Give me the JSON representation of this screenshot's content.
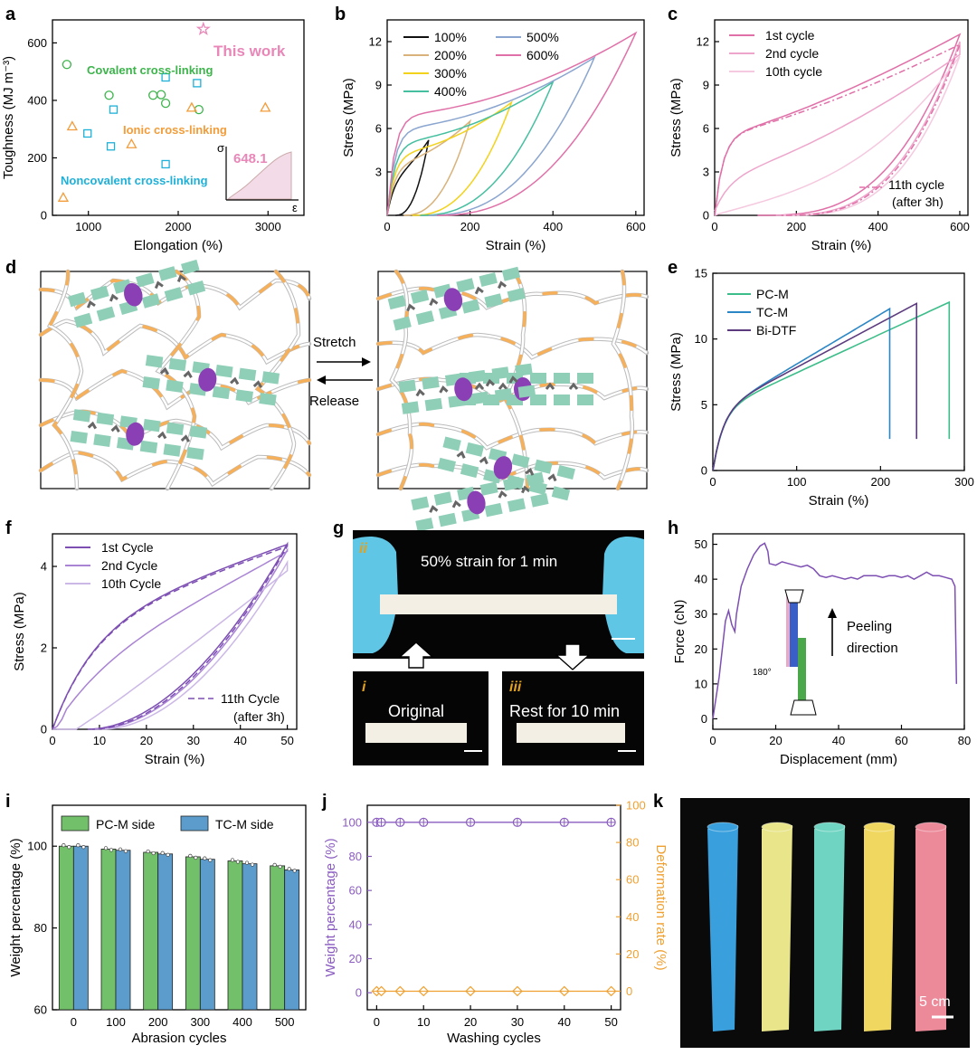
{
  "panels": {
    "a": "a",
    "b": "b",
    "c": "c",
    "d": "d",
    "e": "e",
    "f": "f",
    "g": "g",
    "h": "h",
    "i": "i",
    "j": "j",
    "k": "k"
  },
  "colors": {
    "covalent": "#3cb44b",
    "ionic": "#f39c3a",
    "noncovalent": "#1fb0d8",
    "this_work": "#e887b8",
    "s100": "#111111",
    "s200": "#d8b27a",
    "s300": "#f2d21a",
    "s400": "#45bfa0",
    "s500": "#8aa5cf",
    "s600": "#e070a8",
    "pink1": "#e070a8",
    "pink2": "#eea5cb",
    "pink3": "#f5c9df",
    "pcm": "#3dbd8a",
    "tcm": "#2a86c4",
    "bidtf": "#5b3b7e",
    "purple1": "#7d4fb3",
    "purple2": "#a983d4",
    "purple3": "#cbb8e6",
    "bar_green": "#72c06a",
    "bar_blue": "#5b9ccd",
    "j_purple": "#8a5cc0",
    "j_orange": "#f0a030",
    "block": "#8fcfb8",
    "oval": "#8b3fb5",
    "chain_orange": "#f7b05a"
  },
  "chart_data": [
    {
      "id": "a",
      "type": "scatter",
      "xlabel": "Elongation (%)",
      "ylabel": "Toughness (MJ m⁻³)",
      "xlim": [
        600,
        3400
      ],
      "ylim": [
        0,
        680
      ],
      "xticks": [
        1000,
        2000,
        3000
      ],
      "yticks": [
        0,
        200,
        400,
        600
      ],
      "series": [
        {
          "name": "Covalent cross-linking",
          "marker": "circle",
          "points": [
            [
              760,
              525
            ],
            [
              1230,
              418
            ],
            [
              1720,
              418
            ],
            [
              1810,
              420
            ],
            [
              1860,
              390
            ],
            [
              2230,
              368
            ]
          ]
        },
        {
          "name": "Ionic cross-linking",
          "marker": "triangle",
          "points": [
            [
              720,
              62
            ],
            [
              820,
              310
            ],
            [
              1480,
              248
            ],
            [
              2150,
              375
            ],
            [
              2970,
              375
            ]
          ]
        },
        {
          "name": "Noncovalent cross-linking",
          "marker": "square",
          "points": [
            [
              990,
              285
            ],
            [
              1280,
              368
            ],
            [
              1250,
              240
            ],
            [
              1860,
              480
            ],
            [
              2210,
              460
            ],
            [
              1860,
              178
            ]
          ]
        },
        {
          "name": "This work",
          "marker": "star",
          "points": [
            [
              2280,
              648
            ]
          ]
        }
      ],
      "inset": {
        "value": "648.1",
        "xlabel": "ε",
        "ylabel": "σ"
      }
    },
    {
      "id": "b",
      "type": "line",
      "xlabel": "Strain (%)",
      "ylabel": "Stress (MPa)",
      "xlim": [
        0,
        620
      ],
      "ylim": [
        0,
        13.5
      ],
      "xticks": [
        0,
        200,
        400,
        600
      ],
      "yticks": [
        3,
        6,
        9,
        12
      ],
      "series": [
        {
          "name": "100%",
          "max_strain": 100,
          "max_stress": 5.2
        },
        {
          "name": "200%",
          "max_strain": 200,
          "max_stress": 6.5
        },
        {
          "name": "300%",
          "max_strain": 300,
          "max_stress": 7.8
        },
        {
          "name": "400%",
          "max_strain": 400,
          "max_stress": 9.2
        },
        {
          "name": "500%",
          "max_strain": 500,
          "max_stress": 10.9
        },
        {
          "name": "600%",
          "max_strain": 600,
          "max_stress": 12.6
        }
      ]
    },
    {
      "id": "c",
      "type": "line",
      "xlabel": "Strain (%)",
      "ylabel": "Stress (MPa)",
      "xlim": [
        0,
        620
      ],
      "ylim": [
        0,
        13.5
      ],
      "xticks": [
        0,
        200,
        400,
        600
      ],
      "yticks": [
        0,
        3,
        6,
        9,
        12
      ],
      "series": [
        {
          "name": "1st cycle",
          "max_stress": 12.5,
          "residual_strain": 105
        },
        {
          "name": "2nd cycle",
          "max_stress": 12.0,
          "residual_strain": 150
        },
        {
          "name": "10th cycle",
          "max_stress": 11.0,
          "residual_strain": 170
        },
        {
          "name": "11th cycle",
          "max_stress": 11.8,
          "residual_strain": 160
        }
      ],
      "annotation": [
        "11th cycle",
        "(after 3h)"
      ]
    },
    {
      "id": "e",
      "type": "line",
      "xlabel": "Strain (%)",
      "ylabel": "Stress (MPa)",
      "xlim": [
        0,
        300
      ],
      "ylim": [
        0,
        15
      ],
      "xticks": [
        0,
        100,
        200,
        300
      ],
      "yticks": [
        0,
        5,
        10,
        15
      ],
      "series": [
        {
          "name": "PC-M",
          "break_strain": 282,
          "max_stress": 12.8
        },
        {
          "name": "TC-M",
          "break_strain": 211,
          "max_stress": 12.3
        },
        {
          "name": "Bi-DTF",
          "break_strain": 243,
          "max_stress": 12.7
        }
      ]
    },
    {
      "id": "f",
      "type": "line",
      "xlabel": "Strain (%)",
      "ylabel": "Stress (MPa)",
      "xlim": [
        0,
        52
      ],
      "ylim": [
        0,
        4.8
      ],
      "xticks": [
        0,
        10,
        20,
        30,
        40,
        50
      ],
      "yticks": [
        0,
        2,
        4
      ],
      "series": [
        {
          "name": "1st Cycle",
          "max_stress": 4.55,
          "residual_strain": 7.5
        },
        {
          "name": "2nd Cycle",
          "max_stress": 4.4,
          "residual_strain": 9
        },
        {
          "name": "10th Cycle",
          "max_stress": 4.1,
          "residual_strain": 10.5
        },
        {
          "name": "11th Cycle",
          "max_stress": 4.5,
          "residual_strain": 8.5
        }
      ],
      "annotation": [
        "11th Cycle",
        "(after 3h)"
      ]
    },
    {
      "id": "h",
      "type": "line",
      "xlabel": "Displacement (mm)",
      "ylabel": "Force (cN)",
      "xlim": [
        0,
        80
      ],
      "ylim": [
        -3,
        53
      ],
      "xticks": [
        0,
        20,
        40,
        60,
        80
      ],
      "yticks": [
        0,
        10,
        20,
        30,
        40,
        50
      ],
      "points": [
        [
          0,
          0
        ],
        [
          2,
          12
        ],
        [
          4,
          28
        ],
        [
          5,
          31
        ],
        [
          6,
          27
        ],
        [
          7,
          25
        ],
        [
          7.5,
          30
        ],
        [
          9,
          38
        ],
        [
          11,
          43
        ],
        [
          13,
          47
        ],
        [
          15,
          49.5
        ],
        [
          16.5,
          50.3
        ],
        [
          17.5,
          48
        ],
        [
          18,
          44.5
        ],
        [
          20,
          44
        ],
        [
          22,
          45
        ],
        [
          24,
          44.5
        ],
        [
          26,
          44
        ],
        [
          28,
          43.5
        ],
        [
          30,
          44
        ],
        [
          32,
          43
        ],
        [
          34,
          41
        ],
        [
          36,
          40.5
        ],
        [
          38,
          41
        ],
        [
          40,
          40.5
        ],
        [
          42,
          40
        ],
        [
          44,
          40.5
        ],
        [
          46,
          40
        ],
        [
          48,
          41
        ],
        [
          50,
          41
        ],
        [
          52,
          41
        ],
        [
          54,
          40.5
        ],
        [
          56,
          41
        ],
        [
          58,
          41
        ],
        [
          60,
          40.5
        ],
        [
          62,
          41
        ],
        [
          64,
          40
        ],
        [
          66,
          41
        ],
        [
          68,
          42
        ],
        [
          70,
          41
        ],
        [
          72,
          41
        ],
        [
          74,
          40.5
        ],
        [
          76,
          40
        ],
        [
          77,
          38
        ],
        [
          77.5,
          10
        ]
      ],
      "annotation": [
        "Peeling",
        "direction"
      ],
      "angle_label": "180°"
    },
    {
      "id": "i",
      "type": "bar",
      "xlabel": "Abrasion cycles",
      "ylabel": "Weight percentage (%)",
      "ylim": [
        60,
        110
      ],
      "yticks": [
        60,
        80,
        100
      ],
      "categories": [
        "0",
        "100",
        "200",
        "300",
        "400",
        "500"
      ],
      "series": [
        {
          "name": "PC-M side",
          "values": [
            100,
            99.3,
            98.5,
            97.4,
            96.4,
            95.2
          ]
        },
        {
          "name": "TC-M side",
          "values": [
            100,
            99.0,
            98.1,
            96.8,
            95.7,
            94.2
          ]
        }
      ]
    },
    {
      "id": "j",
      "type": "line",
      "xlabel": "Washing cycles",
      "ylabel": "Weight percentage (%)",
      "ylabel_right": "Deformation rate (%)",
      "xlim": [
        -2,
        52
      ],
      "ylim": [
        -10,
        110
      ],
      "ylim_right": [
        -10,
        100
      ],
      "xticks": [
        0,
        10,
        20,
        30,
        40,
        50
      ],
      "yticks": [
        0,
        20,
        40,
        60,
        80,
        100
      ],
      "yticks_right": [
        0,
        20,
        40,
        60,
        80,
        100
      ],
      "x": [
        0,
        1,
        5,
        10,
        20,
        30,
        40,
        50
      ],
      "series": [
        {
          "name": "Weight percentage",
          "axis": "left",
          "values": [
            100,
            100,
            100,
            100,
            100,
            100,
            100,
            100
          ]
        },
        {
          "name": "Deformation rate",
          "axis": "right",
          "values": [
            0,
            0,
            0,
            0,
            0,
            0,
            0,
            0
          ]
        }
      ]
    }
  ],
  "a_text": {
    "covalent": "Covalent cross-linking",
    "ionic": "Ionic cross-linking",
    "noncovalent": "Noncovalent cross-linking",
    "this_work": "This work"
  },
  "d": {
    "stretch": "Stretch",
    "release": "Release"
  },
  "g": {
    "top_text": "50% strain for 1 min",
    "label_ii": "ii",
    "label_i": "i",
    "label_iii": "iii",
    "original": "Original",
    "rest": "Rest for 10 min"
  },
  "k": {
    "scale": "5 cm",
    "tubes": [
      "blue",
      "yellow",
      "green",
      "yellow",
      "pink"
    ]
  }
}
